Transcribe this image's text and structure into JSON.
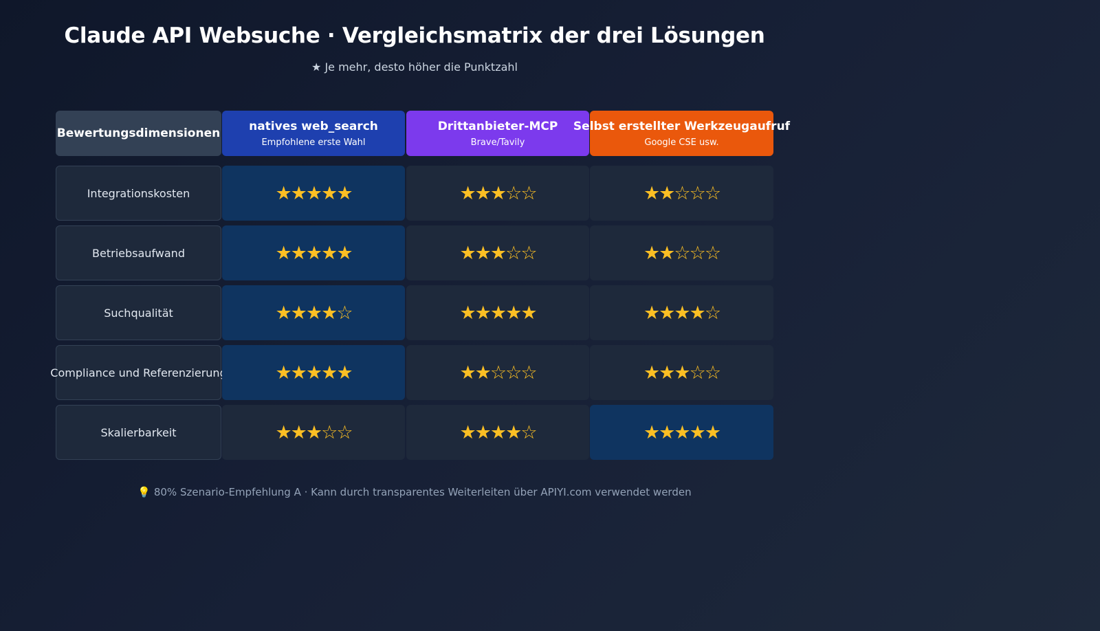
{
  "title": "Claude API Websuche · Vergleichsmatrix der drei Lösungen",
  "subtitle": "★ Je mehr, desto höher die Punktzahl",
  "header": {
    "dimension_label": "Bewertungsdimensionen",
    "columns": [
      {
        "title": "natives web_search",
        "subtitle": "Empfohlene erste Wahl",
        "color": "#1e40af"
      },
      {
        "title": "Drittanbieter-MCP",
        "subtitle": "Brave/Tavily",
        "color": "#7c3aed"
      },
      {
        "title": "Selbst erstellter Werkzeugaufruf",
        "subtitle": "Google CSE usw.",
        "color": "#ea580c"
      }
    ]
  },
  "max_stars": 5,
  "colors": {
    "star": "#fbbf24",
    "highlight": "#0f3460",
    "cell": "#1e293b",
    "label_header": "#334155"
  },
  "rows": [
    {
      "label": "Integrationskosten",
      "scores": [
        5,
        3,
        2
      ],
      "highlight": [
        true,
        false,
        false
      ]
    },
    {
      "label": "Betriebsaufwand",
      "scores": [
        5,
        3,
        2
      ],
      "highlight": [
        true,
        false,
        false
      ]
    },
    {
      "label": "Suchqualität",
      "scores": [
        4,
        5,
        4
      ],
      "highlight": [
        true,
        false,
        false
      ]
    },
    {
      "label": "Compliance und Referenzierung",
      "scores": [
        5,
        2,
        3
      ],
      "highlight": [
        true,
        false,
        false
      ]
    },
    {
      "label": "Skalierbarkeit",
      "scores": [
        3,
        4,
        5
      ],
      "highlight": [
        false,
        false,
        true
      ]
    }
  ],
  "footer": "💡 80% Szenario-Empfehlung A · Kann durch transparentes Weiterleiten über APIYI.com verwendet werden"
}
